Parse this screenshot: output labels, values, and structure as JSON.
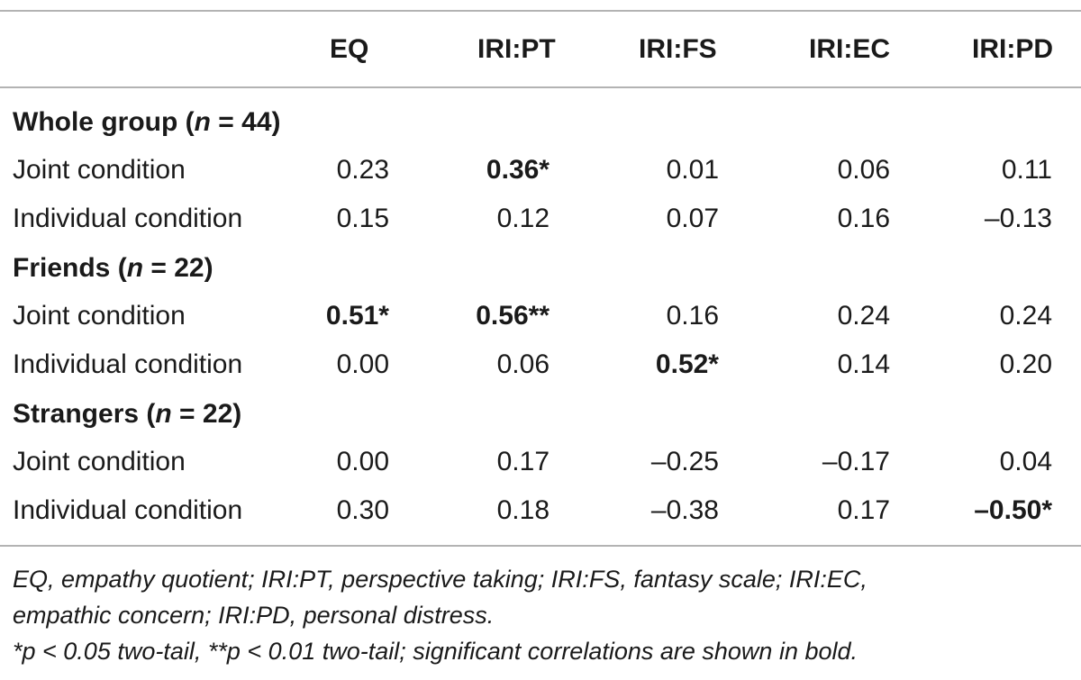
{
  "columns": [
    "EQ",
    "IRI:PT",
    "IRI:FS",
    "IRI:EC",
    "IRI:PD"
  ],
  "groups": [
    {
      "label_prefix": "Whole group (",
      "label_n": "n",
      "label_suffix": " = 44)",
      "rows": [
        {
          "label": "Joint condition",
          "values": [
            "0.23",
            "0.36*",
            "0.01",
            "0.06",
            "0.11"
          ],
          "bold": [
            false,
            true,
            false,
            false,
            false
          ]
        },
        {
          "label": "Individual condition",
          "values": [
            "0.15",
            "0.12",
            "0.07",
            "0.16",
            "–0.13"
          ],
          "bold": [
            false,
            false,
            false,
            false,
            false
          ]
        }
      ]
    },
    {
      "label_prefix": "Friends (",
      "label_n": "n",
      "label_suffix": " = 22)",
      "rows": [
        {
          "label": "Joint condition",
          "values": [
            "0.51*",
            "0.56**",
            "0.16",
            "0.24",
            "0.24"
          ],
          "bold": [
            true,
            true,
            false,
            false,
            false
          ]
        },
        {
          "label": "Individual condition",
          "values": [
            "0.00",
            "0.06",
            "0.52*",
            "0.14",
            "0.20"
          ],
          "bold": [
            false,
            false,
            true,
            false,
            false
          ]
        }
      ]
    },
    {
      "label_prefix": "Strangers (",
      "label_n": "n",
      "label_suffix": " = 22)",
      "rows": [
        {
          "label": "Joint condition",
          "values": [
            "0.00",
            "0.17",
            "–0.25",
            "–0.17",
            "0.04"
          ],
          "bold": [
            false,
            false,
            false,
            false,
            false
          ]
        },
        {
          "label": "Individual condition",
          "values": [
            "0.30",
            "0.18",
            "–0.38",
            "0.17",
            "–0.50*"
          ],
          "bold": [
            false,
            false,
            false,
            false,
            true
          ]
        }
      ]
    }
  ],
  "footnote": {
    "line1": "EQ, empathy quotient; IRI:PT, perspective taking; IRI:FS, fantasy scale; IRI:EC,",
    "line2": "empathic concern; IRI:PD, personal distress.",
    "line3": "*p < 0.05 two-tail, **p < 0.01 two-tail; significant correlations are shown in bold."
  }
}
